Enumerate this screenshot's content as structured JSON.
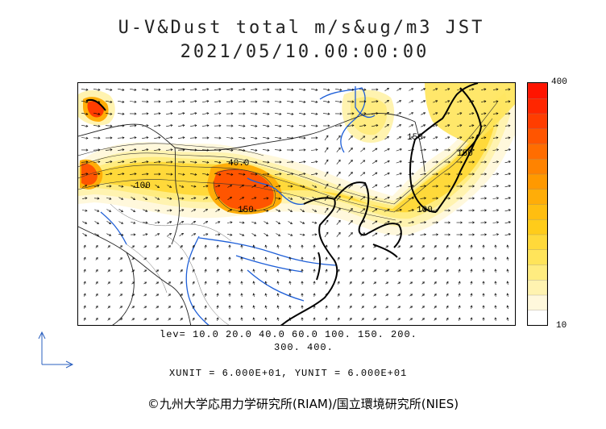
{
  "title_line1": "U-V&Dust total m/s&ug/m3 JST",
  "title_line2": "2021/05/10.00:00:00",
  "colorbar": {
    "max_label": "400",
    "min_label": "10",
    "colors": [
      "#ffffff",
      "#fff8dc",
      "#fff3b0",
      "#ffec80",
      "#ffe45a",
      "#ffd93a",
      "#ffcc1a",
      "#ffbe10",
      "#ffad08",
      "#ff9900",
      "#ff8300",
      "#ff6d00",
      "#ff5500",
      "#ff3d00",
      "#ff2600",
      "#ff1400"
    ]
  },
  "lev_line1": "lev= 10.0 20.0 40.0 60.0 100. 150. 200.",
  "lev_line2": "300. 400.",
  "unit_line": "XUNIT = 6.000E+01, YUNIT = 6.000E+01",
  "credit": "©九州大学応用力学研究所(RIAM)/国立環境研究所(NIES)",
  "contour_labels": [
    "40.0",
    "150",
    "150",
    "150",
    "100",
    "100"
  ],
  "colors": {
    "coast": "#000000",
    "rivers": "#1e5fd8",
    "border": "#222222"
  }
}
